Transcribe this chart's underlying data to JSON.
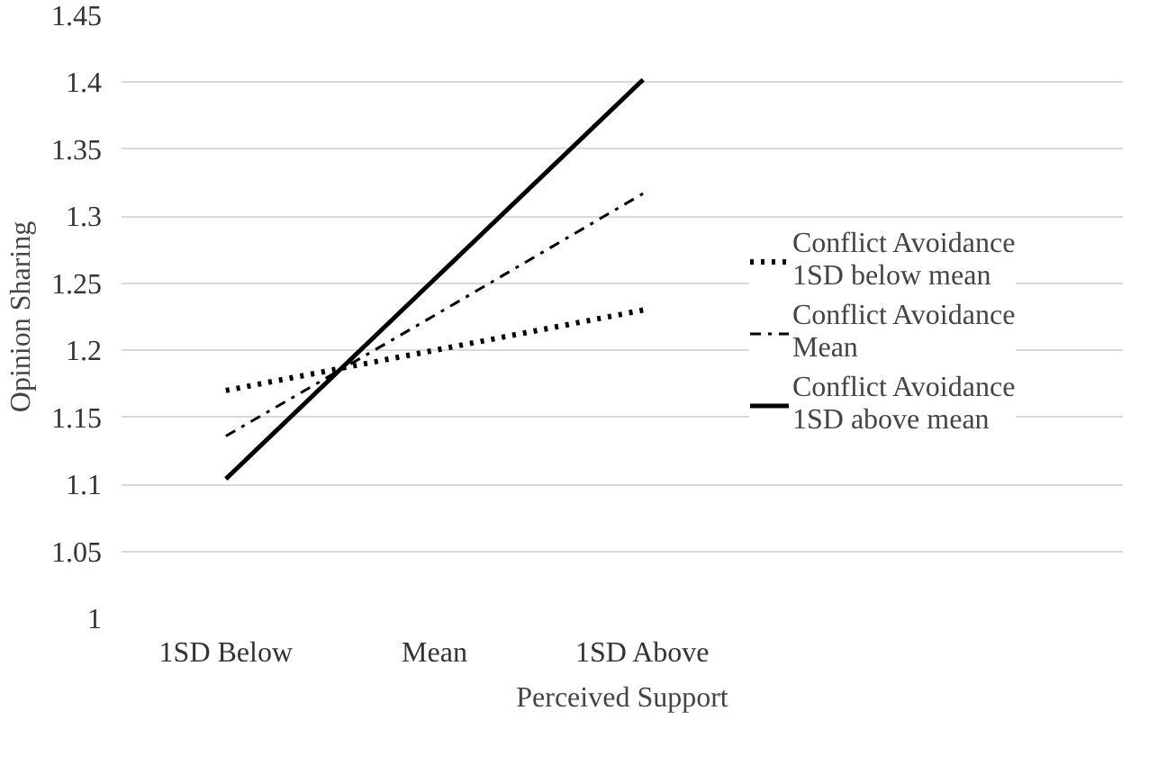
{
  "chart_data": {
    "type": "line",
    "xlabel": "Perceived Support",
    "ylabel": "Opinion Sharing",
    "categories": [
      "1SD Below",
      "Mean",
      "1SD Above"
    ],
    "series": [
      {
        "name": "Conflict Avoidance 1SD below mean",
        "color": "#000000",
        "line_style": "dotted",
        "values": [
          1.17,
          1.2,
          1.23
        ]
      },
      {
        "name": "Conflict Avoidance Mean",
        "color": "#000000",
        "line_style": "dashdot",
        "values": [
          1.136,
          1.226,
          1.317
        ]
      },
      {
        "name": "Conflict Avoidance 1SD above mean",
        "color": "#000000",
        "line_style": "solid",
        "values": [
          1.104,
          1.253,
          1.402
        ]
      }
    ],
    "ylim": [
      1,
      1.45
    ],
    "yticks": [
      1,
      1.05,
      1.1,
      1.15,
      1.2,
      1.25,
      1.3,
      1.35,
      1.4,
      1.45
    ],
    "grid": "y",
    "legend": "right",
    "marker": "none"
  }
}
